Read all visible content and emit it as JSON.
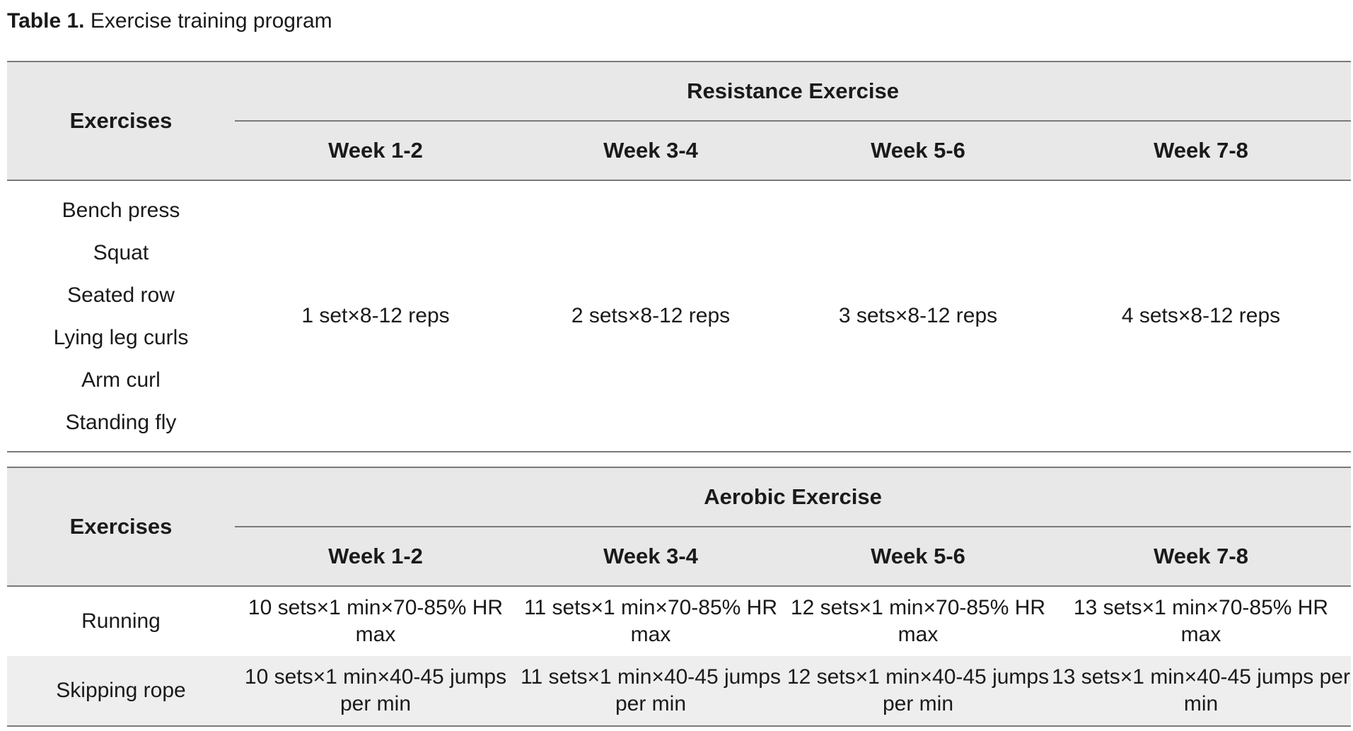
{
  "caption": {
    "label": "Table 1.",
    "text": "Exercise training program"
  },
  "resistance": {
    "exercises_header": "Exercises",
    "group_title": "Resistance Exercise",
    "weeks": [
      "Week 1-2",
      "Week 3-4",
      "Week 5-6",
      "Week 7-8"
    ],
    "exercises": [
      "Bench press",
      "Squat",
      "Seated row",
      "Lying leg curls",
      "Arm curl",
      "Standing fly"
    ],
    "values": [
      "1 set×8-12 reps",
      "2 sets×8-12 reps",
      "3 sets×8-12 reps",
      "4 sets×8-12 reps"
    ]
  },
  "aerobic": {
    "exercises_header": "Exercises",
    "group_title": "Aerobic Exercise",
    "weeks": [
      "Week 1-2",
      "Week 3-4",
      "Week 5-6",
      "Week 7-8"
    ],
    "rows": [
      {
        "exercise": "Running",
        "values": [
          "10 sets×1 min×70-85% HR max",
          "11 sets×1 min×70-85% HR max",
          "12 sets×1 min×70-85% HR max",
          "13 sets×1 min×70-85% HR max"
        ]
      },
      {
        "exercise": "Skipping rope",
        "values": [
          "10 sets×1 min×40-45 jumps per min",
          "11 sets×1 min×40-45 jumps per min",
          "12 sets×1 min×40-45 jumps per min",
          "13 sets×1 min×40-45 jumps per min"
        ]
      }
    ]
  },
  "colors": {
    "header_bg": "#e8e8e8",
    "alt_row_bg": "#eeeeee",
    "rule": "#7a7a7a"
  }
}
